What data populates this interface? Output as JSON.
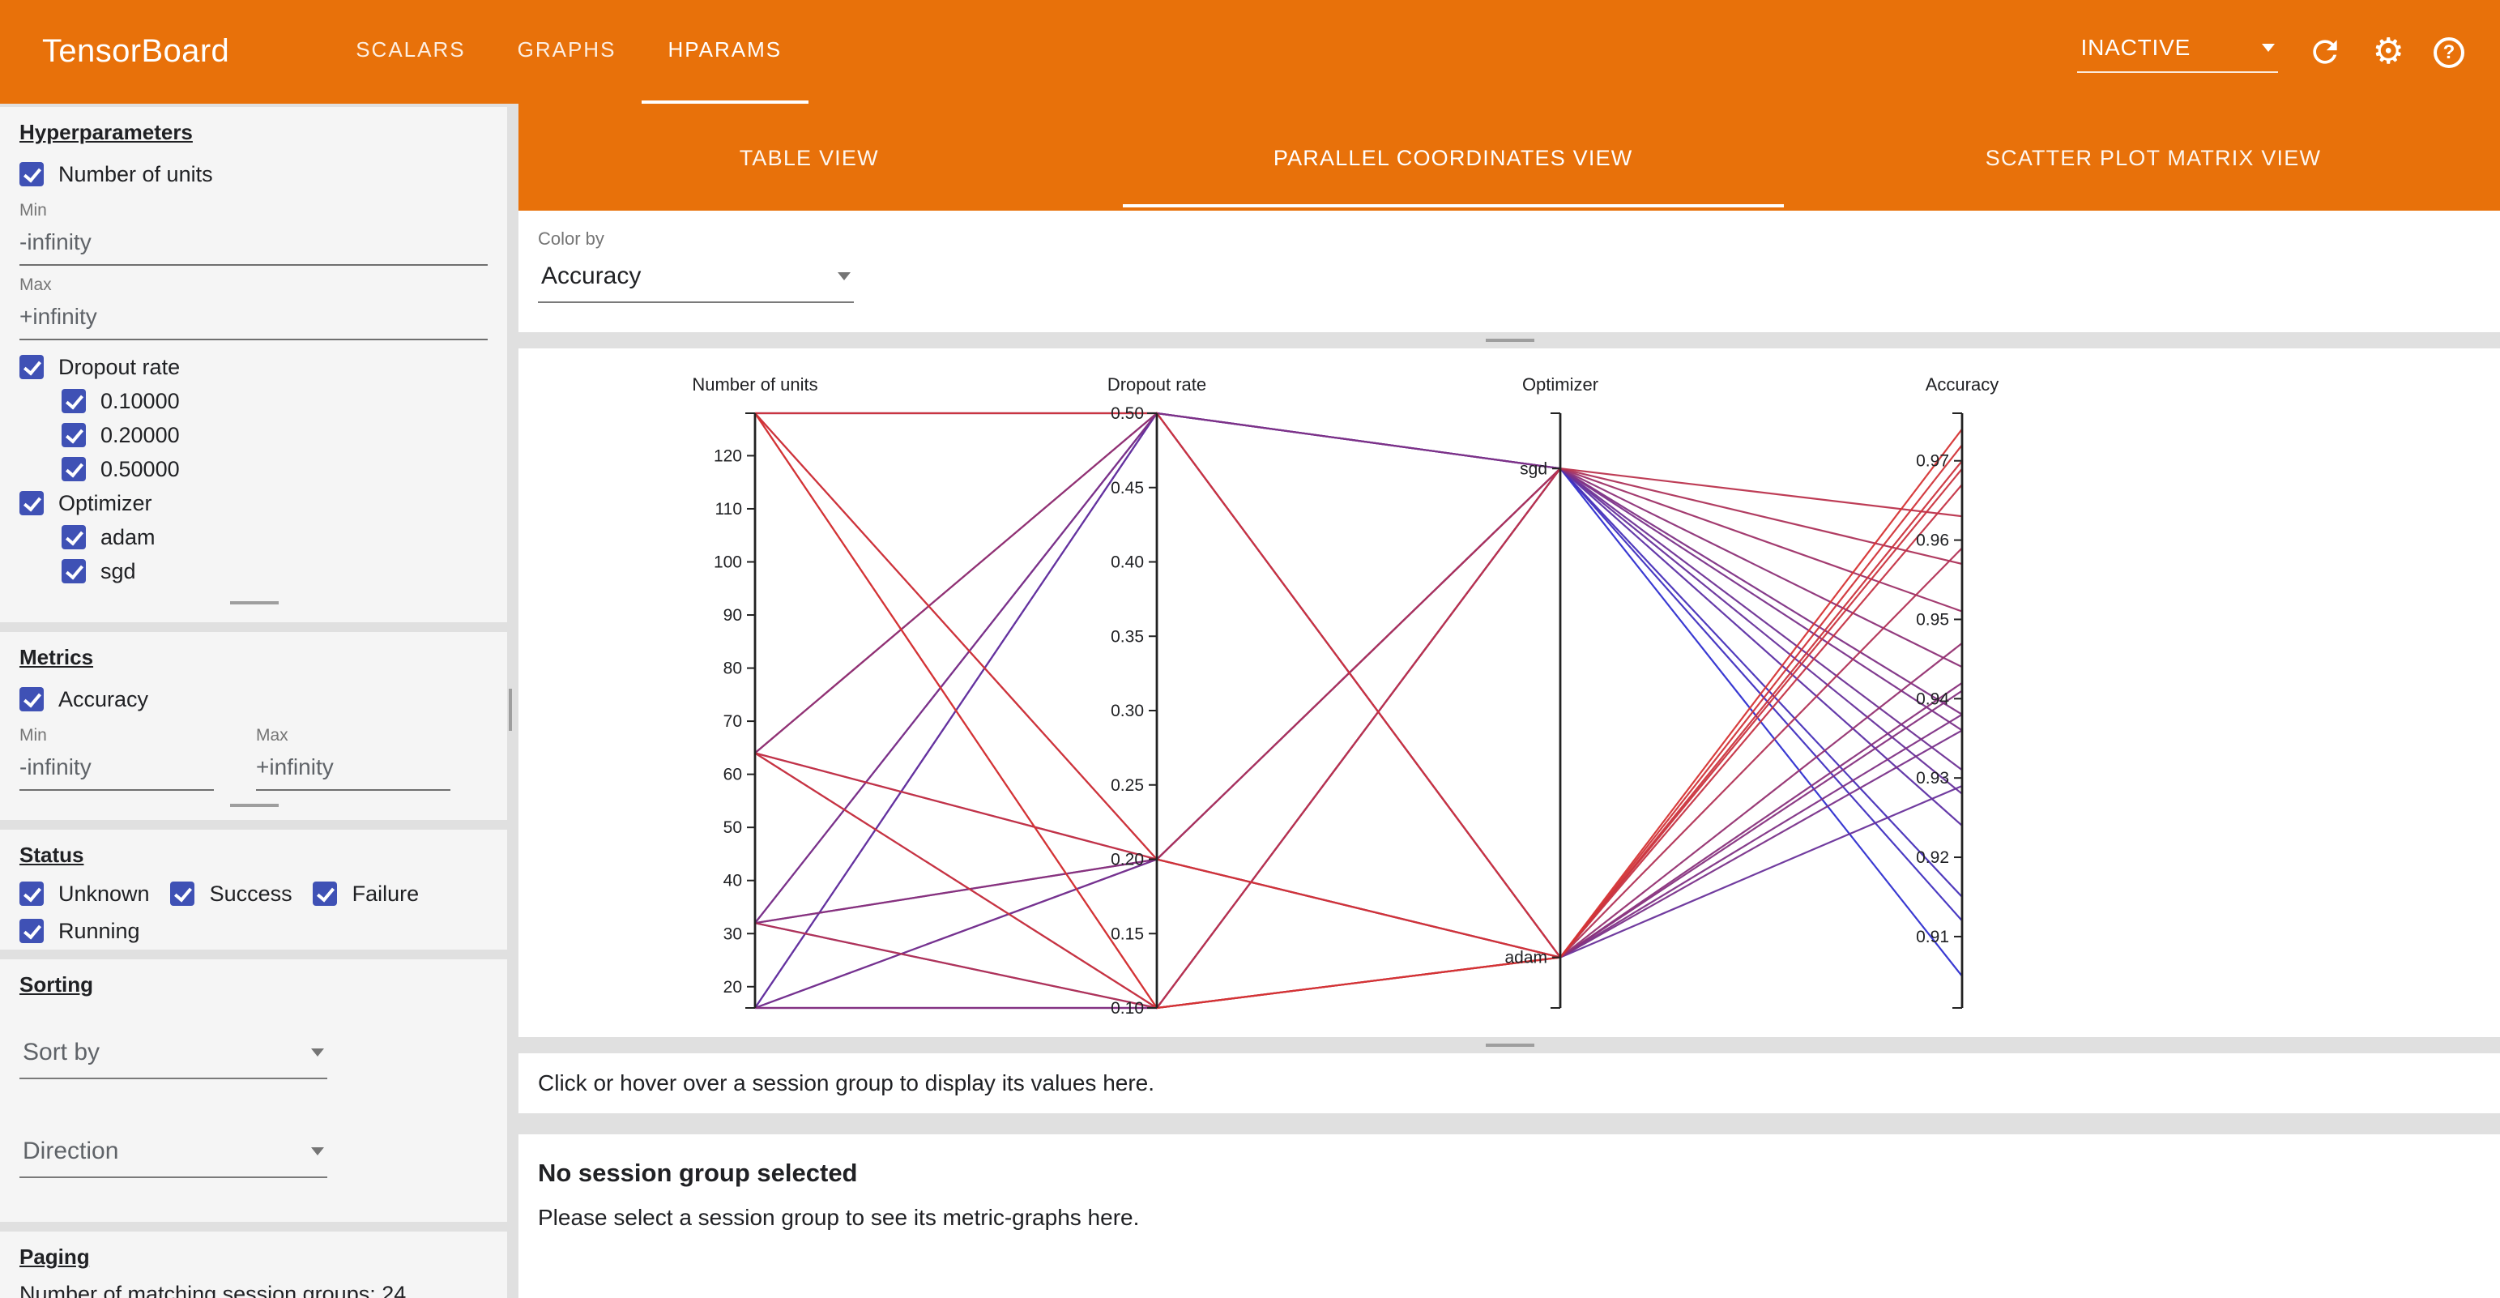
{
  "colors": {
    "header_orange": "#e8710a",
    "checkbox_blue": "#3f51b5"
  },
  "header": {
    "title": "TensorBoard",
    "nav": [
      {
        "label": "SCALARS",
        "active": false
      },
      {
        "label": "GRAPHS",
        "active": false
      },
      {
        "label": "HPARAMS",
        "active": true
      }
    ],
    "run_selector": {
      "value": "INACTIVE"
    },
    "icons": [
      {
        "name": "refresh-icon"
      },
      {
        "name": "settings-icon"
      },
      {
        "name": "help-icon",
        "glyph": "?"
      }
    ]
  },
  "sidebar": {
    "hyperparameters": {
      "title": "Hyperparameters",
      "number_of_units": {
        "label": "Number of units",
        "checked": true,
        "min_label": "Min",
        "min_value": "-infinity",
        "max_label": "Max",
        "max_value": "+infinity"
      },
      "dropout_rate": {
        "label": "Dropout rate",
        "checked": true,
        "values": [
          {
            "label": "0.10000",
            "checked": true
          },
          {
            "label": "0.20000",
            "checked": true
          },
          {
            "label": "0.50000",
            "checked": true
          }
        ]
      },
      "optimizer": {
        "label": "Optimizer",
        "checked": true,
        "values": [
          {
            "label": "adam",
            "checked": true
          },
          {
            "label": "sgd",
            "checked": true
          }
        ]
      }
    },
    "metrics": {
      "title": "Metrics",
      "accuracy": {
        "label": "Accuracy",
        "checked": true
      },
      "min_label": "Min",
      "min_value": "-infinity",
      "max_label": "Max",
      "max_value": "+infinity"
    },
    "status": {
      "title": "Status",
      "options": [
        {
          "label": "Unknown",
          "checked": true
        },
        {
          "label": "Success",
          "checked": true
        },
        {
          "label": "Failure",
          "checked": true
        },
        {
          "label": "Running",
          "checked": true
        }
      ]
    },
    "sorting": {
      "title": "Sorting",
      "sort_by_placeholder": "Sort by",
      "direction_placeholder": "Direction"
    },
    "paging": {
      "title": "Paging",
      "summary": "Number of matching session groups: 24"
    }
  },
  "main": {
    "view_tabs": [
      {
        "label": "TABLE VIEW",
        "active": false
      },
      {
        "label": "PARALLEL COORDINATES VIEW",
        "active": true
      },
      {
        "label": "SCATTER PLOT MATRIX VIEW",
        "active": false
      }
    ],
    "color_by": {
      "label": "Color by",
      "value": "Accuracy"
    },
    "session_hint": "Click or hover over a session group to display its values here.",
    "no_selection_title": "No session group selected",
    "no_selection_subtitle": "Please select a session group to see its metric-graphs here."
  },
  "chart_data": {
    "type": "parallel_coordinates",
    "color_by": "Accuracy",
    "color_range": [
      "#2f2fd0",
      "#d63434"
    ],
    "axes": [
      {
        "key": "units",
        "label": "Number of units",
        "type": "linear",
        "domain": [
          16,
          128
        ],
        "ticks": [
          20,
          30,
          40,
          50,
          60,
          70,
          80,
          90,
          100,
          110,
          120
        ],
        "tick_labels": [
          "20",
          "30",
          "40",
          "50",
          "60",
          "70",
          "80",
          "90",
          "100",
          "110",
          "120"
        ]
      },
      {
        "key": "dropout",
        "label": "Dropout rate",
        "type": "linear",
        "domain": [
          0.1,
          0.5
        ],
        "ticks": [
          0.1,
          0.15,
          0.2,
          0.25,
          0.3,
          0.35,
          0.4,
          0.45,
          0.5
        ],
        "tick_labels": [
          "0.10",
          "0.15",
          "0.20",
          "0.25",
          "0.30",
          "0.35",
          "0.40",
          "0.45",
          "0.50"
        ]
      },
      {
        "key": "optimizer",
        "label": "Optimizer",
        "type": "categorical",
        "categories": [
          "sgd",
          "adam"
        ],
        "positions": {
          "sgd": 0.093,
          "adam": 0.915
        }
      },
      {
        "key": "accuracy",
        "label": "Accuracy",
        "type": "linear",
        "domain": [
          0.901,
          0.976
        ],
        "ticks": [
          0.91,
          0.92,
          0.93,
          0.94,
          0.95,
          0.96,
          0.97
        ],
        "tick_labels": [
          "0.91",
          "0.92",
          "0.93",
          "0.94",
          "0.95",
          "0.96",
          "0.97"
        ]
      }
    ],
    "sessions": [
      {
        "units": 128,
        "dropout": 0.1,
        "optimizer": "adam",
        "accuracy": 0.974
      },
      {
        "units": 128,
        "dropout": 0.2,
        "optimizer": "adam",
        "accuracy": 0.972
      },
      {
        "units": 128,
        "dropout": 0.5,
        "optimizer": "adam",
        "accuracy": 0.97
      },
      {
        "units": 64,
        "dropout": 0.1,
        "optimizer": "adam",
        "accuracy": 0.969
      },
      {
        "units": 64,
        "dropout": 0.2,
        "optimizer": "adam",
        "accuracy": 0.967
      },
      {
        "units": 64,
        "dropout": 0.5,
        "optimizer": "adam",
        "accuracy": 0.947
      },
      {
        "units": 32,
        "dropout": 0.1,
        "optimizer": "adam",
        "accuracy": 0.959
      },
      {
        "units": 32,
        "dropout": 0.2,
        "optimizer": "adam",
        "accuracy": 0.942
      },
      {
        "units": 32,
        "dropout": 0.5,
        "optimizer": "adam",
        "accuracy": 0.938
      },
      {
        "units": 16,
        "dropout": 0.1,
        "optimizer": "adam",
        "accuracy": 0.941
      },
      {
        "units": 16,
        "dropout": 0.2,
        "optimizer": "adam",
        "accuracy": 0.936
      },
      {
        "units": 16,
        "dropout": 0.5,
        "optimizer": "adam",
        "accuracy": 0.929
      },
      {
        "units": 128,
        "dropout": 0.1,
        "optimizer": "sgd",
        "accuracy": 0.963
      },
      {
        "units": 128,
        "dropout": 0.2,
        "optimizer": "sgd",
        "accuracy": 0.957
      },
      {
        "units": 128,
        "dropout": 0.5,
        "optimizer": "sgd",
        "accuracy": 0.938
      },
      {
        "units": 64,
        "dropout": 0.1,
        "optimizer": "sgd",
        "accuracy": 0.951
      },
      {
        "units": 64,
        "dropout": 0.2,
        "optimizer": "sgd",
        "accuracy": 0.944
      },
      {
        "units": 64,
        "dropout": 0.5,
        "optimizer": "sgd",
        "accuracy": 0.931
      },
      {
        "units": 32,
        "dropout": 0.1,
        "optimizer": "sgd",
        "accuracy": 0.936
      },
      {
        "units": 32,
        "dropout": 0.2,
        "optimizer": "sgd",
        "accuracy": 0.928
      },
      {
        "units": 32,
        "dropout": 0.5,
        "optimizer": "sgd",
        "accuracy": 0.915
      },
      {
        "units": 16,
        "dropout": 0.1,
        "optimizer": "sgd",
        "accuracy": 0.924
      },
      {
        "units": 16,
        "dropout": 0.2,
        "optimizer": "sgd",
        "accuracy": 0.912
      },
      {
        "units": 16,
        "dropout": 0.5,
        "optimizer": "sgd",
        "accuracy": 0.905
      }
    ]
  }
}
